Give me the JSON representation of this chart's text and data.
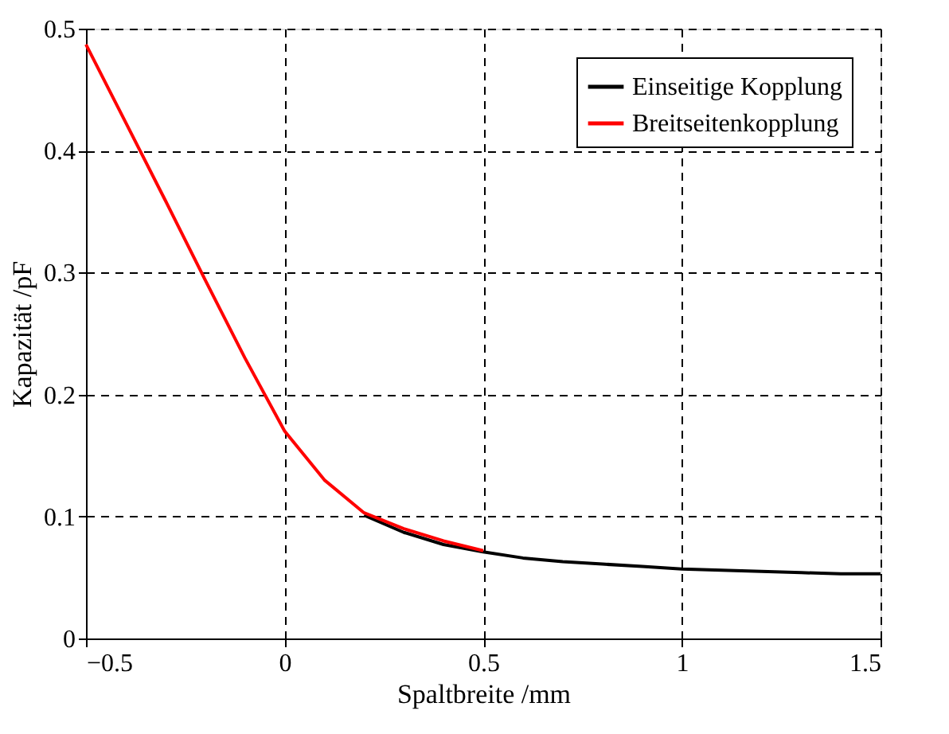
{
  "chart_data": {
    "type": "line",
    "xlabel": "Spaltbreite /mm",
    "ylabel": "Kapazität /pF",
    "xlim": [
      -0.5,
      1.5
    ],
    "ylim": [
      0,
      0.5
    ],
    "xticks": [
      -0.5,
      0,
      0.5,
      1,
      1.5
    ],
    "yticks": [
      0,
      0.1,
      0.2,
      0.3,
      0.4,
      0.5
    ],
    "grid": true,
    "legend": "top right",
    "line_style": "solid",
    "marker": "none",
    "series": [
      {
        "name": "Einseitige Kopplung",
        "color": "#000000",
        "x": [
          0.2,
          0.3,
          0.4,
          0.5,
          0.6,
          0.7,
          0.8,
          0.9,
          1.0,
          1.1,
          1.2,
          1.3,
          1.4,
          1.5
        ],
        "values": [
          0.101,
          0.087,
          0.077,
          0.071,
          0.066,
          0.063,
          0.061,
          0.059,
          0.057,
          0.056,
          0.055,
          0.054,
          0.053,
          0.053
        ]
      },
      {
        "name": "Breitseitenkopplung",
        "color": "#ff0000",
        "x": [
          -0.5,
          -0.4,
          -0.3,
          -0.2,
          -0.1,
          0,
          0.1,
          0.2,
          0.3,
          0.4,
          0.5
        ],
        "values": [
          0.487,
          0.423,
          0.359,
          0.294,
          0.23,
          0.17,
          0.13,
          0.103,
          0.09,
          0.08,
          0.072
        ]
      }
    ]
  }
}
